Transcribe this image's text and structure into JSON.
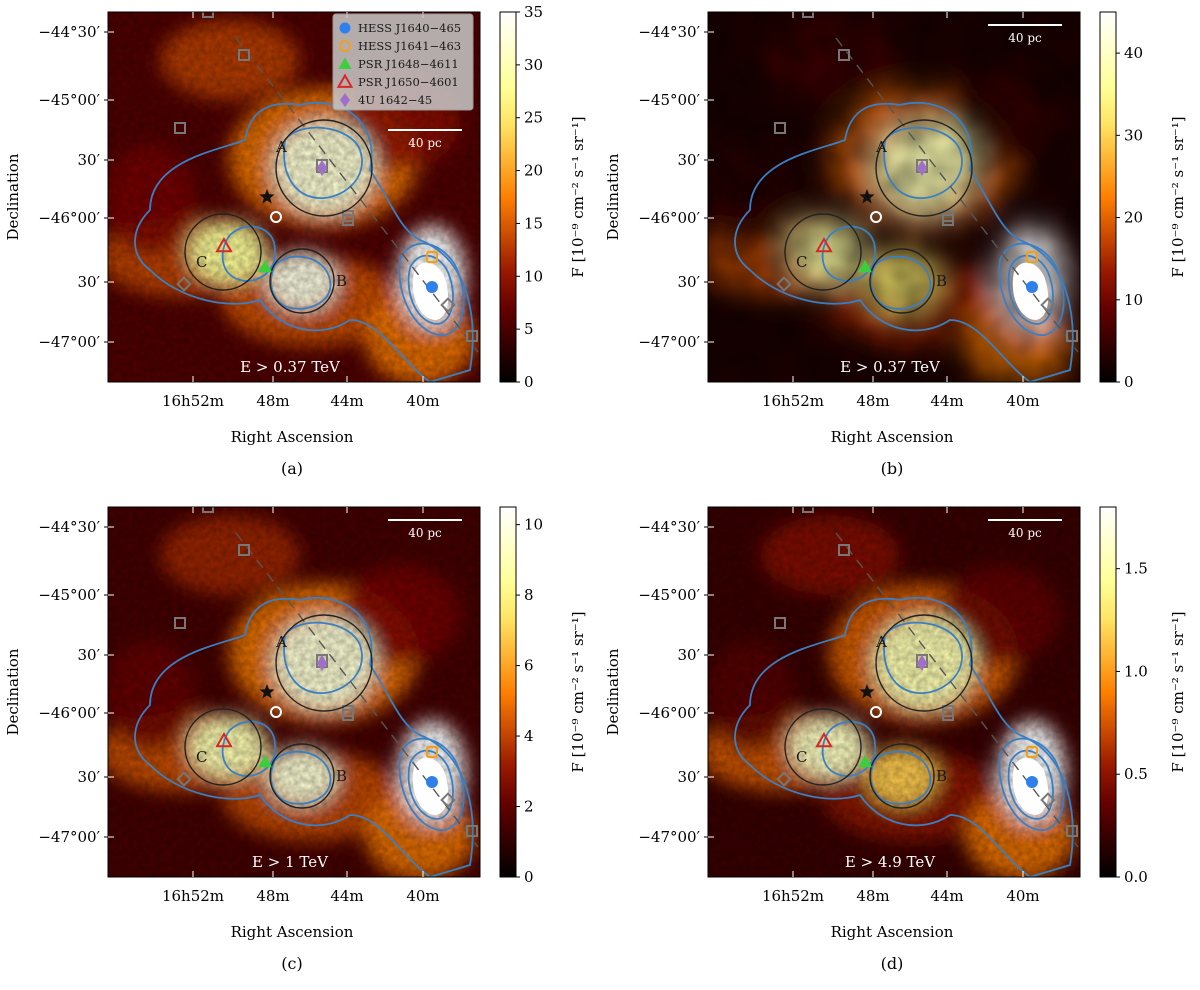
{
  "chart_data": [
    {
      "type": "heatmap",
      "panel": "(a)",
      "energy_label": "E > 0.37 TeV",
      "colorbar": {
        "min": 0,
        "max": 35,
        "ticks": [
          0,
          5,
          10,
          15,
          20,
          25,
          30,
          35
        ],
        "label": "F [10⁻⁹ cm⁻² s⁻¹ sr⁻¹]"
      },
      "show_legend": true,
      "smoothed": false,
      "brightness": {
        "A": 0.92,
        "B": 0.95,
        "C": 0.8,
        "HESS": 1.0,
        "bg": 0.35
      }
    },
    {
      "type": "heatmap",
      "panel": "(b)",
      "energy_label": "E > 0.37 TeV",
      "colorbar": {
        "min": 0,
        "max": 45,
        "ticks": [
          0,
          10,
          20,
          30,
          40
        ],
        "label": "F [10⁻⁹ cm⁻² s⁻¹ sr⁻¹]"
      },
      "show_legend": false,
      "smoothed": true,
      "brightness": {
        "A": 0.85,
        "B": 0.72,
        "C": 0.82,
        "HESS": 1.0,
        "bg": 0.12
      }
    },
    {
      "type": "heatmap",
      "panel": "(c)",
      "energy_label": "E > 1 TeV",
      "colorbar": {
        "min": 0,
        "max": 10.5,
        "ticks": [
          0,
          2,
          4,
          6,
          8,
          10
        ],
        "label": "F [10⁻⁹ cm⁻² s⁻¹ sr⁻¹]"
      },
      "show_legend": false,
      "smoothed": false,
      "brightness": {
        "A": 0.92,
        "B": 0.92,
        "C": 0.85,
        "HESS": 1.0,
        "bg": 0.3
      }
    },
    {
      "type": "heatmap",
      "panel": "(d)",
      "energy_label": "E > 4.9 TeV",
      "colorbar": {
        "min": 0.0,
        "max": 1.8,
        "ticks": [
          0.0,
          0.5,
          1.0,
          1.5
        ],
        "label": "F [10⁻⁹ cm⁻² s⁻¹ sr⁻¹]"
      },
      "show_legend": false,
      "smoothed": false,
      "brightness": {
        "A": 0.85,
        "B": 0.65,
        "C": 0.88,
        "HESS": 1.0,
        "bg": 0.25
      }
    }
  ],
  "axes": {
    "xlabel": "Right Ascension",
    "ylabel": "Declination",
    "x_ticks": [
      "16h52m",
      "48m",
      "44m",
      "40m"
    ],
    "y_ticks": [
      "−44°30′",
      "−45°00′",
      "30′",
      "−46°00′",
      "30′",
      "−47°00′"
    ]
  },
  "scale_bar_label": "40 pc",
  "region_labels": [
    "A",
    "B",
    "C"
  ],
  "legend": [
    {
      "name": "HESS J1640−465",
      "marker": "filled-circle",
      "color": "#2f80ed"
    },
    {
      "name": "HESS J1641−463",
      "marker": "open-circle",
      "color": "#f0a020"
    },
    {
      "name": "PSR J1648−4611",
      "marker": "filled-triangle",
      "color": "#3ccf3c"
    },
    {
      "name": "PSR J1650−4601",
      "marker": "open-triangle",
      "color": "#d62828"
    },
    {
      "name": "4U 1642−45",
      "marker": "filled-diamond",
      "color": "#a070c8"
    }
  ],
  "colors": {
    "contour": "#3a7fc4",
    "circle": "#222222"
  }
}
